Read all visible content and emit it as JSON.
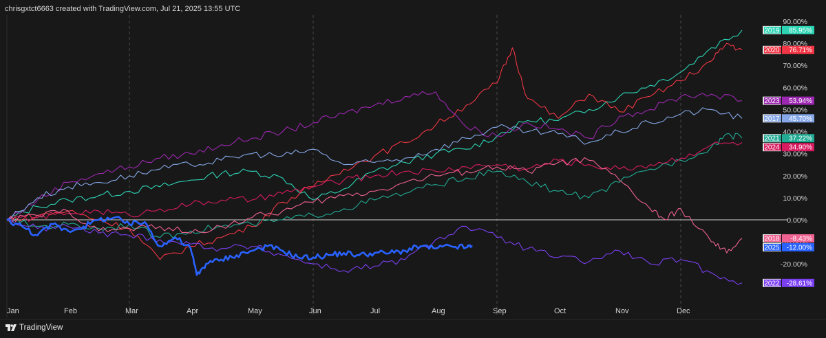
{
  "header": {
    "caption": "chrisgxtct6663 created with TradingView.com, Jul 21, 2025 13:55 UTC"
  },
  "footer": {
    "brand": "TradingView",
    "logo_icon": "tradingview-logo-icon"
  },
  "chart_data": {
    "type": "line",
    "title": "",
    "xlabel": "",
    "ylabel": "",
    "ylim": [
      -34,
      90
    ],
    "y_ticks": [
      90,
      80,
      70,
      60,
      50,
      40,
      30,
      20,
      10,
      0,
      -10,
      -20
    ],
    "y_tick_labels": [
      "90.00%",
      "80.00%",
      "70.00%",
      "60.00%",
      "50.00%",
      "40.00%",
      "30.00%",
      "20.00%",
      "10.00%",
      "0.00%",
      "-10.00%",
      "-20.00%"
    ],
    "x_months": [
      "Jan",
      "Feb",
      "Mar",
      "Apr",
      "May",
      "Jun",
      "Jul",
      "Aug",
      "Sep",
      "Oct",
      "Nov",
      "Dec"
    ],
    "x_unit": "month of year (0 = Jan 1, 12 = Dec 31)",
    "zero_line": true,
    "grid": "vertical dashed lines at Mar, Jun, Sep, Dec",
    "series": [
      {
        "name": "2019",
        "color": "#2dd4b4",
        "last_label": "85.95%",
        "points": [
          [
            0,
            0
          ],
          [
            0.5,
            6
          ],
          [
            1,
            9
          ],
          [
            1.5,
            11
          ],
          [
            2,
            13
          ],
          [
            2.5,
            15
          ],
          [
            3,
            18
          ],
          [
            3.5,
            21
          ],
          [
            4,
            22
          ],
          [
            4.5,
            19
          ],
          [
            5,
            9
          ],
          [
            5.5,
            14
          ],
          [
            6,
            22
          ],
          [
            6.5,
            26
          ],
          [
            7,
            30
          ],
          [
            7.5,
            32
          ],
          [
            8,
            38
          ],
          [
            8.5,
            45
          ],
          [
            9,
            45
          ],
          [
            9.5,
            50
          ],
          [
            10,
            56
          ],
          [
            10.5,
            61
          ],
          [
            11,
            67
          ],
          [
            11.5,
            78
          ],
          [
            12,
            86
          ]
        ]
      },
      {
        "name": "2020",
        "color": "#f23645",
        "last_label": "76.71%",
        "points": [
          [
            0,
            0
          ],
          [
            0.5,
            2
          ],
          [
            1,
            4
          ],
          [
            1.5,
            0
          ],
          [
            2,
            -4
          ],
          [
            2.5,
            -18
          ],
          [
            3,
            -12
          ],
          [
            3.5,
            -8
          ],
          [
            4,
            -3
          ],
          [
            4.5,
            8
          ],
          [
            5,
            15
          ],
          [
            5.5,
            23
          ],
          [
            6,
            29
          ],
          [
            6.5,
            35
          ],
          [
            7,
            43
          ],
          [
            7.5,
            52
          ],
          [
            8,
            62
          ],
          [
            8.25,
            78
          ],
          [
            8.5,
            55
          ],
          [
            9,
            46
          ],
          [
            9.5,
            57
          ],
          [
            10,
            49
          ],
          [
            10.5,
            56
          ],
          [
            11,
            63
          ],
          [
            11.5,
            72
          ],
          [
            11.75,
            80
          ],
          [
            12,
            77
          ]
        ]
      },
      {
        "name": "2023",
        "color": "#9c27b0",
        "last_label": "53.94%",
        "points": [
          [
            0,
            0
          ],
          [
            0.5,
            9
          ],
          [
            1,
            17
          ],
          [
            1.5,
            21
          ],
          [
            2,
            24
          ],
          [
            2.5,
            28
          ],
          [
            3,
            30
          ],
          [
            3.5,
            34
          ],
          [
            4,
            37
          ],
          [
            4.5,
            40
          ],
          [
            5,
            44
          ],
          [
            5.5,
            48
          ],
          [
            6,
            52
          ],
          [
            6.5,
            56
          ],
          [
            7,
            58
          ],
          [
            7.5,
            42
          ],
          [
            8,
            38
          ],
          [
            8.5,
            44
          ],
          [
            9,
            41
          ],
          [
            9.5,
            37
          ],
          [
            10,
            47
          ],
          [
            10.5,
            50
          ],
          [
            11,
            56
          ],
          [
            11.5,
            57
          ],
          [
            12,
            54
          ]
        ]
      },
      {
        "name": "2017",
        "color": "#86a8e8",
        "last_label": "45.70%",
        "points": [
          [
            0,
            0
          ],
          [
            0.5,
            10
          ],
          [
            1,
            15
          ],
          [
            1.5,
            17
          ],
          [
            2,
            20
          ],
          [
            2.5,
            23
          ],
          [
            3,
            25
          ],
          [
            3.5,
            27
          ],
          [
            4,
            30
          ],
          [
            4.5,
            29
          ],
          [
            5,
            32
          ],
          [
            5.5,
            25
          ],
          [
            6,
            26
          ],
          [
            6.5,
            28
          ],
          [
            7,
            32
          ],
          [
            7.5,
            37
          ],
          [
            8,
            42
          ],
          [
            8.5,
            40
          ],
          [
            9,
            39
          ],
          [
            9.5,
            35
          ],
          [
            10,
            40
          ],
          [
            10.5,
            44
          ],
          [
            11,
            48
          ],
          [
            11.5,
            50
          ],
          [
            12,
            46
          ]
        ]
      },
      {
        "name": "2021",
        "color": "#22ab94",
        "last_label": "37.22%",
        "points": [
          [
            0,
            0
          ],
          [
            0.5,
            -3
          ],
          [
            1,
            -2
          ],
          [
            1.5,
            -4
          ],
          [
            2,
            -2
          ],
          [
            2.5,
            -8
          ],
          [
            3,
            -5
          ],
          [
            3.5,
            -3
          ],
          [
            4,
            -2
          ],
          [
            4.5,
            0
          ],
          [
            5,
            2
          ],
          [
            5.5,
            5
          ],
          [
            6,
            9
          ],
          [
            6.5,
            12
          ],
          [
            7,
            16
          ],
          [
            7.5,
            19
          ],
          [
            8,
            22
          ],
          [
            8.5,
            17
          ],
          [
            9,
            13
          ],
          [
            9.5,
            10
          ],
          [
            10,
            17
          ],
          [
            10.5,
            23
          ],
          [
            11,
            27
          ],
          [
            11.5,
            33
          ],
          [
            11.75,
            39
          ],
          [
            12,
            37
          ]
        ]
      },
      {
        "name": "2024",
        "color": "#d81b60",
        "last_label": "34.90%",
        "points": [
          [
            0,
            0
          ],
          [
            0.5,
            1
          ],
          [
            1,
            3
          ],
          [
            1.5,
            4
          ],
          [
            2,
            2
          ],
          [
            2.5,
            5
          ],
          [
            3,
            7
          ],
          [
            3.5,
            9
          ],
          [
            4,
            9
          ],
          [
            4.5,
            12
          ],
          [
            5,
            15
          ],
          [
            5.5,
            18
          ],
          [
            6,
            20
          ],
          [
            6.5,
            22
          ],
          [
            7,
            22
          ],
          [
            7.5,
            24
          ],
          [
            8,
            25
          ],
          [
            8.5,
            23
          ],
          [
            9,
            27
          ],
          [
            9.5,
            25
          ],
          [
            10,
            23
          ],
          [
            10.5,
            25
          ],
          [
            11,
            28
          ],
          [
            11.5,
            34
          ],
          [
            12,
            35
          ]
        ]
      },
      {
        "name": "2018",
        "color": "#f06292",
        "last_label": "-8.43%",
        "points": [
          [
            0,
            0
          ],
          [
            0.5,
            2
          ],
          [
            1,
            4
          ],
          [
            1.5,
            -5
          ],
          [
            2,
            -4
          ],
          [
            2.5,
            -3
          ],
          [
            3,
            -6
          ],
          [
            3.5,
            -3
          ],
          [
            4,
            1
          ],
          [
            4.5,
            4
          ],
          [
            5,
            8
          ],
          [
            5.5,
            11
          ],
          [
            6,
            13
          ],
          [
            6.5,
            17
          ],
          [
            7,
            20
          ],
          [
            7.5,
            22
          ],
          [
            8,
            24
          ],
          [
            8.5,
            22
          ],
          [
            9,
            26
          ],
          [
            9.5,
            27
          ],
          [
            10,
            18
          ],
          [
            10.5,
            5
          ],
          [
            10.75,
            0
          ],
          [
            11,
            5
          ],
          [
            11.5,
            -10
          ],
          [
            11.75,
            -15
          ],
          [
            12,
            -8.4
          ]
        ]
      },
      {
        "name": "2025",
        "color": "#2962ff",
        "last_label": "-12.00%",
        "bold": true,
        "points": [
          [
            0,
            0
          ],
          [
            0.25,
            -3
          ],
          [
            0.5,
            -7
          ],
          [
            0.75,
            -2
          ],
          [
            1,
            -5
          ],
          [
            1.25,
            -3
          ],
          [
            1.5,
            0
          ],
          [
            1.75,
            1
          ],
          [
            2,
            -2
          ],
          [
            2.25,
            -1
          ],
          [
            2.5,
            -12
          ],
          [
            2.75,
            -8
          ],
          [
            3,
            -13
          ],
          [
            3.1,
            -25
          ],
          [
            3.25,
            -20
          ],
          [
            3.5,
            -18
          ],
          [
            3.75,
            -16
          ],
          [
            4,
            -14
          ],
          [
            4.25,
            -12
          ],
          [
            4.5,
            -14
          ],
          [
            4.75,
            -17
          ],
          [
            5,
            -17
          ],
          [
            5.25,
            -16
          ],
          [
            5.5,
            -15
          ],
          [
            5.75,
            -16
          ],
          [
            6,
            -15
          ],
          [
            6.25,
            -15
          ],
          [
            6.5,
            -14
          ],
          [
            6.75,
            -12
          ],
          [
            7,
            -13
          ],
          [
            7.25,
            -12
          ],
          [
            7.5,
            -12.5
          ],
          [
            7.6,
            -12
          ]
        ]
      },
      {
        "name": "2022",
        "color": "#7b3ff2",
        "last_label": "-28.61%",
        "points": [
          [
            0,
            0
          ],
          [
            0.5,
            -4
          ],
          [
            1,
            -3
          ],
          [
            1.5,
            -6
          ],
          [
            2,
            -7
          ],
          [
            2.5,
            -9
          ],
          [
            3,
            -11
          ],
          [
            3.5,
            -13
          ],
          [
            4,
            -12
          ],
          [
            4.5,
            -16
          ],
          [
            5,
            -20
          ],
          [
            5.5,
            -23
          ],
          [
            6,
            -21
          ],
          [
            6.5,
            -18
          ],
          [
            7,
            -9
          ],
          [
            7.5,
            -3
          ],
          [
            8,
            -8
          ],
          [
            8.5,
            -13
          ],
          [
            9,
            -17
          ],
          [
            9.5,
            -19
          ],
          [
            10,
            -14
          ],
          [
            10.5,
            -20
          ],
          [
            11,
            -18
          ],
          [
            11.5,
            -24
          ],
          [
            12,
            -28.6
          ]
        ]
      }
    ]
  }
}
